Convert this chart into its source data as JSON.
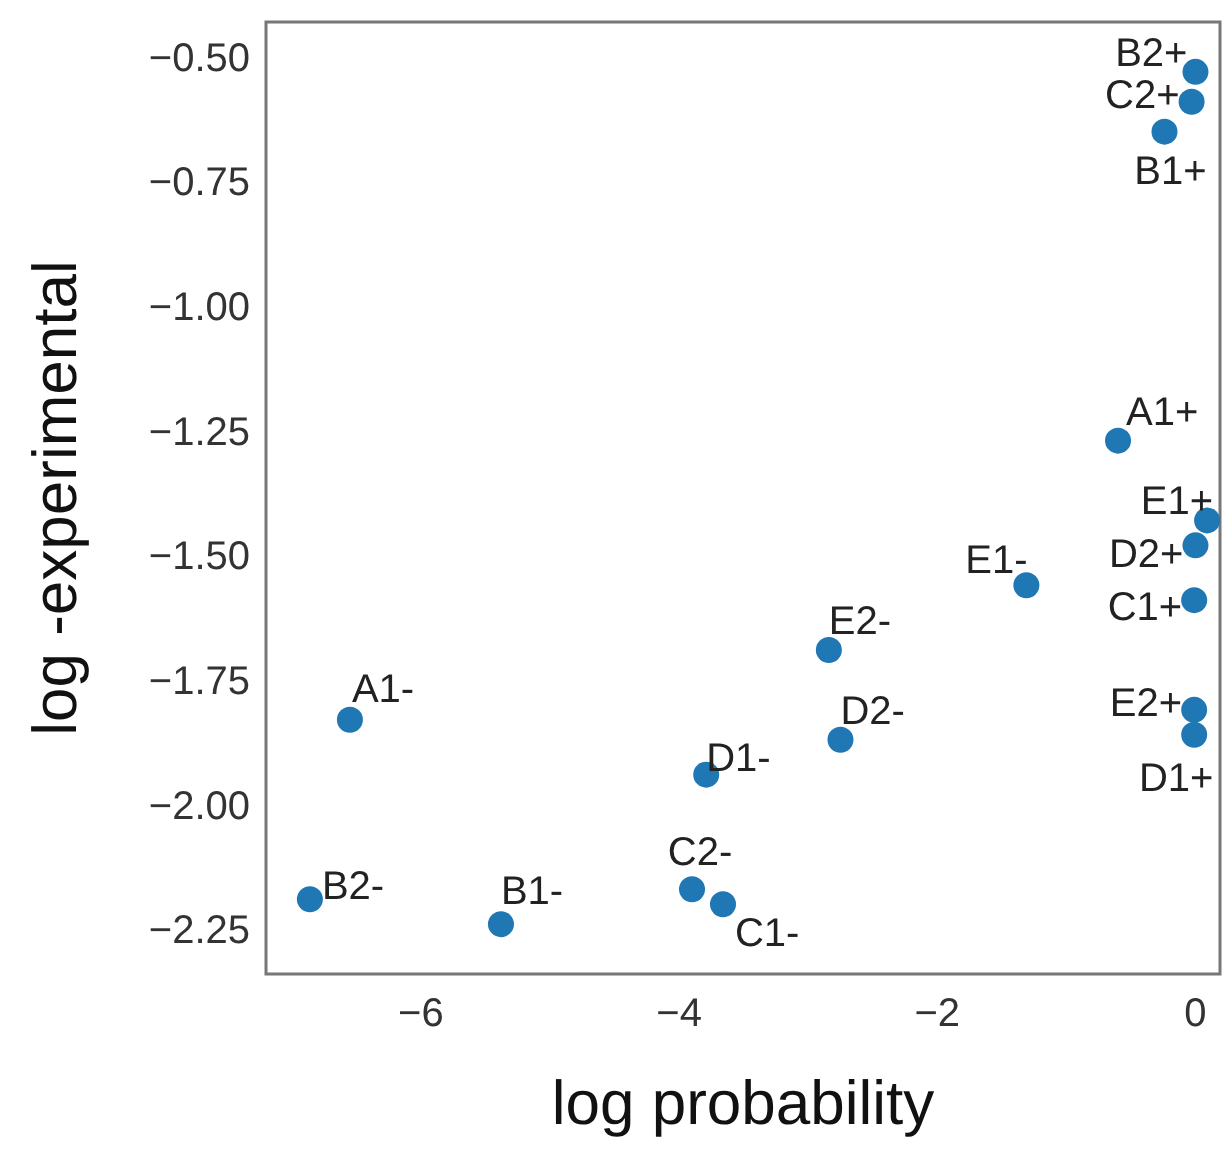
{
  "chart_data": {
    "type": "scatter",
    "xlabel": "log probability",
    "ylabel": "log -experimental",
    "xlim": [
      -7.2,
      0.19
    ],
    "ylim": [
      -2.34,
      -0.43
    ],
    "xticks": [
      -6,
      -4,
      -2,
      0
    ],
    "yticks": [
      {
        "value": -0.5,
        "label": "−0.50"
      },
      {
        "value": -0.75,
        "label": "−0.75"
      },
      {
        "value": -1,
        "label": "−1.00"
      },
      {
        "value": -1.25,
        "label": "−1.25"
      },
      {
        "value": -1.5,
        "label": "−1.50"
      },
      {
        "value": -1.75,
        "label": "−1.75"
      },
      {
        "value": -2,
        "label": "−2.00"
      },
      {
        "value": -2.25,
        "label": "−2.25"
      }
    ],
    "grid": false,
    "marker": "circle",
    "series": [
      {
        "color": "#1f77b4",
        "x": [
          0.0,
          -0.03,
          -0.24,
          -0.6,
          0.09,
          -0.0,
          -1.31,
          -0.01,
          -2.84,
          -6.55,
          -0.01,
          -2.75,
          -0.01,
          -3.79,
          -3.9,
          -3.66,
          -6.86,
          -5.38
        ],
        "values": [
          -0.53,
          -0.59,
          -0.65,
          -1.27,
          -1.43,
          -1.48,
          -1.56,
          -1.59,
          -1.69,
          -1.83,
          -1.81,
          -1.87,
          -1.86,
          -1.94,
          -2.17,
          -2.2,
          -2.19,
          -2.24
        ]
      }
    ],
    "annotations": [
      {
        "text": "B2+",
        "x": 0.0,
        "y": -0.53
      },
      {
        "text": "C2+",
        "x": -0.03,
        "y": -0.59
      },
      {
        "text": "B1+",
        "x": -0.24,
        "y": -0.65
      },
      {
        "text": "A1+",
        "x": -0.6,
        "y": -1.27
      },
      {
        "text": "E1+",
        "x": 0.09,
        "y": -1.43
      },
      {
        "text": "D2+",
        "x": -0.0,
        "y": -1.48
      },
      {
        "text": "E1-",
        "x": -1.31,
        "y": -1.56
      },
      {
        "text": "C1+",
        "x": -0.01,
        "y": -1.59
      },
      {
        "text": "E2-",
        "x": -2.84,
        "y": -1.69
      },
      {
        "text": "A1-",
        "x": -6.55,
        "y": -1.83
      },
      {
        "text": "E2+",
        "x": -0.01,
        "y": -1.81
      },
      {
        "text": "D2-",
        "x": -2.75,
        "y": -1.87
      },
      {
        "text": "D1+",
        "x": -0.01,
        "y": -1.86
      },
      {
        "text": "D1-",
        "x": -3.79,
        "y": -1.94
      },
      {
        "text": "C2-",
        "x": -3.9,
        "y": -2.17
      },
      {
        "text": "C1-",
        "x": -3.66,
        "y": -2.2
      },
      {
        "text": "B2-",
        "x": -6.86,
        "y": -2.19
      },
      {
        "text": "B1-",
        "x": -5.38,
        "y": -2.24
      }
    ]
  }
}
